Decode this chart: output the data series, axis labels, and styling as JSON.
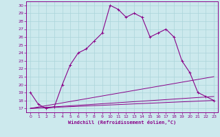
{
  "xlabel": "Windchill (Refroidissement éolien,°C)",
  "xlim": [
    -0.5,
    23.5
  ],
  "ylim": [
    16.5,
    30.5
  ],
  "yticks": [
    17,
    18,
    19,
    20,
    21,
    22,
    23,
    24,
    25,
    26,
    27,
    28,
    29,
    30
  ],
  "xticks": [
    0,
    1,
    2,
    3,
    4,
    5,
    6,
    7,
    8,
    9,
    10,
    11,
    12,
    13,
    14,
    15,
    16,
    17,
    18,
    19,
    20,
    21,
    22,
    23
  ],
  "background_color": "#cce9ed",
  "grid_color": "#aad4da",
  "line_color": "#880088",
  "series": [
    {
      "x": [
        0,
        1,
        2,
        3,
        4,
        5,
        6,
        7,
        8,
        9,
        10,
        11,
        12,
        13,
        14,
        15,
        16,
        17,
        18,
        19,
        20,
        21,
        22,
        23
      ],
      "y": [
        19,
        17.5,
        17.0,
        17.2,
        20.0,
        22.5,
        24.0,
        24.5,
        25.5,
        26.5,
        30.0,
        29.5,
        28.5,
        29.0,
        28.5,
        26.0,
        26.5,
        27.0,
        26.0,
        23.0,
        21.5,
        19.0,
        18.5,
        18.0
      ],
      "marker": true
    },
    {
      "x": [
        0,
        23
      ],
      "y": [
        17.0,
        18.0
      ],
      "marker": false
    },
    {
      "x": [
        0,
        23
      ],
      "y": [
        17.0,
        18.5
      ],
      "marker": false
    },
    {
      "x": [
        0,
        23
      ],
      "y": [
        17.0,
        21.0
      ],
      "marker": false
    }
  ]
}
